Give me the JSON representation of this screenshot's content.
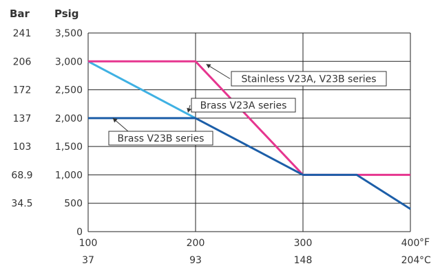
{
  "chart_data": {
    "type": "line",
    "title": "",
    "xlabel": "",
    "ylabel": "",
    "left_header_bar": "Bar",
    "left_header_psig": "Psig",
    "unit_f": "°F",
    "unit_c": "°C",
    "xlim": [
      100,
      400
    ],
    "ylim": [
      0,
      3500
    ],
    "grid": true,
    "y_ticks_psig": [
      "3,500",
      "3,000",
      "2,500",
      "2,000",
      "1,500",
      "1,000",
      "500",
      "0"
    ],
    "y_ticks_bar": [
      "241",
      "206",
      "172",
      "137",
      "103",
      "68.9",
      "34.5"
    ],
    "x_ticks_f": [
      "100",
      "200",
      "300",
      "400"
    ],
    "x_ticks_c": [
      "37",
      "93",
      "148",
      "204"
    ],
    "series": [
      {
        "name": "Stainless V23A, V23B series",
        "color": "#e6358f",
        "x": [
          100,
          200,
          300,
          350,
          400
        ],
        "y": [
          3000,
          3000,
          1000,
          1000,
          1000
        ]
      },
      {
        "name": "Brass V23A series",
        "color": "#3fb1e3",
        "x": [
          100,
          200
        ],
        "y": [
          3000,
          2000
        ]
      },
      {
        "name": "Brass V23B series",
        "color": "#1c5ea8",
        "x": [
          100,
          200,
          300,
          350,
          400
        ],
        "y": [
          2000,
          2000,
          1000,
          1000,
          400
        ]
      }
    ],
    "annotations": [
      {
        "label": "Stainless V23A, V23B series",
        "points_to": [
          210,
          2950
        ]
      },
      {
        "label": "Brass V23A series",
        "points_to": [
          193,
          2100
        ]
      },
      {
        "label": "Brass V23B series",
        "points_to": [
          123,
          2000
        ]
      }
    ]
  }
}
